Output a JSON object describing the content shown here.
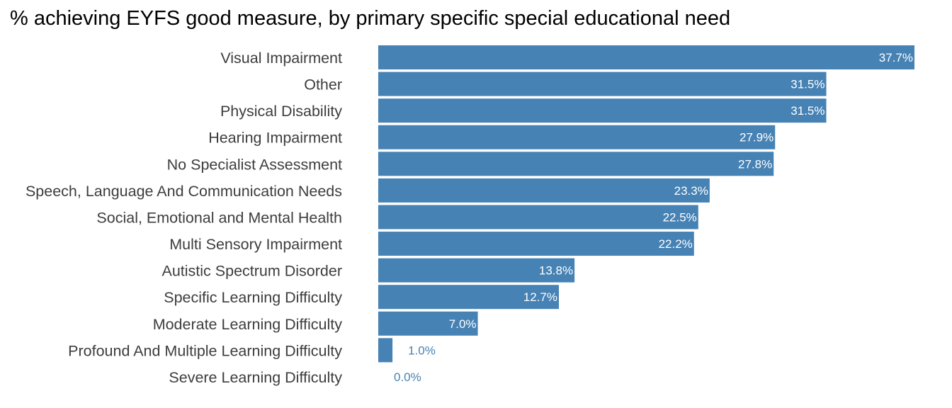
{
  "chart_data": {
    "type": "bar",
    "orientation": "horizontal",
    "title": "% achieving EYFS good measure, by primary specific special educational need",
    "xlabel": "",
    "ylabel": "",
    "xlim": [
      0,
      37.7
    ],
    "grid": false,
    "legend": "none",
    "bar_color": "#4682b4",
    "value_suffix": "%",
    "categories": [
      "Visual Impairment",
      "Other",
      "Physical Disability",
      "Hearing Impairment",
      "No Specialist Assessment",
      "Speech, Language And Communication Needs",
      "Social, Emotional and Mental Health",
      "Multi Sensory Impairment",
      "Autistic Spectrum Disorder",
      "Specific Learning Difficulty",
      "Moderate Learning Difficulty",
      "Profound And Multiple Learning Difficulty",
      "Severe Learning Difficulty"
    ],
    "values": [
      37.7,
      31.5,
      31.5,
      27.9,
      27.8,
      23.3,
      22.5,
      22.2,
      13.8,
      12.7,
      7.0,
      1.0,
      0.0
    ],
    "data_labels": [
      "37.7%",
      "31.5%",
      "31.5%",
      "27.9%",
      "27.8%",
      "23.3%",
      "22.5%",
      "22.2%",
      "13.8%",
      "12.7%",
      "7.0%",
      "1.0%",
      "0.0%"
    ]
  }
}
